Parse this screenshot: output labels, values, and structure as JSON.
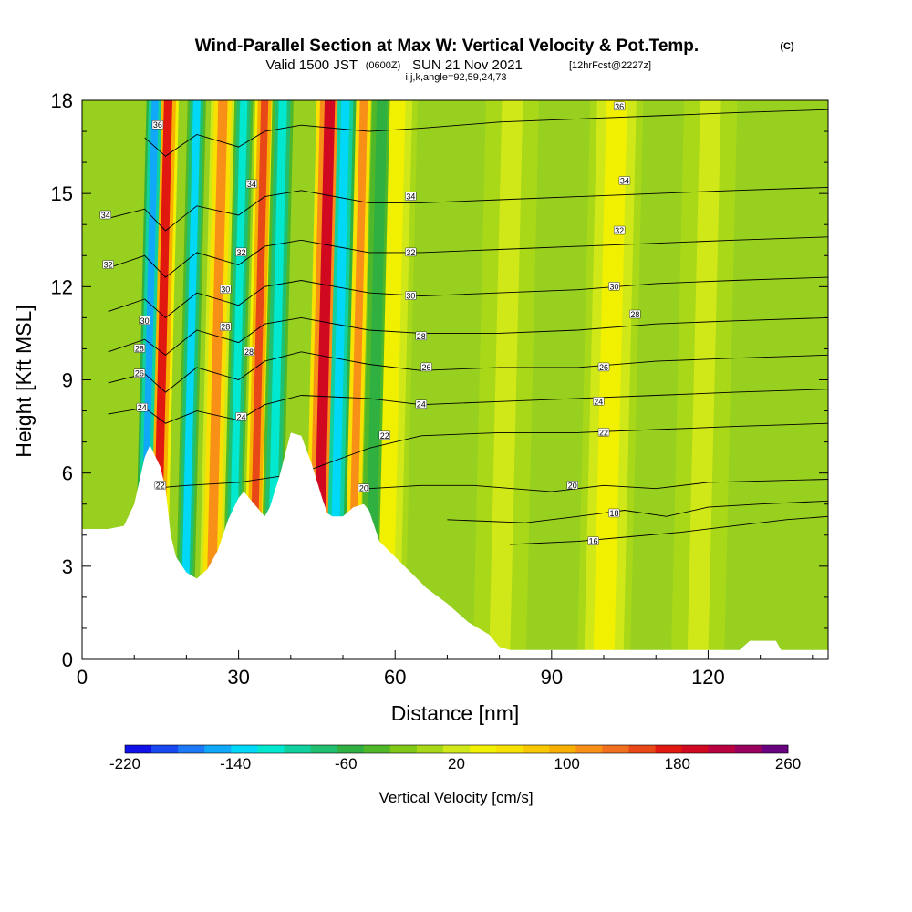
{
  "header": {
    "title": "Wind-Parallel Section at Max W: Vertical Velocity & Pot.Temp.",
    "copyright": "(C)",
    "subtitle_a": "Valid 1500 JST",
    "subtitle_b": "(0600Z)",
    "subtitle_c": "SUN 21 Nov 2021",
    "subtitle_d": "[12hrFcst@2227z]",
    "subtitle_line3": "i,j,k,angle=92,59,24,73"
  },
  "chart_data": {
    "type": "heatmap",
    "xlabel": "Distance [nm]",
    "ylabel": "Height [Kft MSL]",
    "xlim": [
      0,
      143
    ],
    "ylim": [
      0,
      18
    ],
    "x_ticks": [
      0,
      30,
      60,
      90,
      120
    ],
    "y_ticks": [
      0,
      3,
      6,
      9,
      12,
      15,
      18
    ],
    "colorbar": {
      "title": "Vertical Velocity [cm/s]",
      "levels": [
        -220,
        -200,
        -180,
        -160,
        -140,
        -120,
        -100,
        -80,
        -60,
        -40,
        -20,
        0,
        20,
        40,
        60,
        80,
        100,
        120,
        140,
        160,
        180,
        200,
        220,
        240,
        260
      ],
      "labels": [
        -220,
        -140,
        -60,
        20,
        100,
        180,
        260
      ],
      "colors": [
        "#1010e8",
        "#1848f0",
        "#1c78f4",
        "#10a8f8",
        "#00d8f8",
        "#00e8d0",
        "#10d0a0",
        "#20c070",
        "#30b040",
        "#50b828",
        "#80c818",
        "#a8d818",
        "#d0e818",
        "#f0f000",
        "#f8e000",
        "#f8c800",
        "#f8b000",
        "#f89018",
        "#f07020",
        "#e84818",
        "#e01810",
        "#d00820",
        "#b80040",
        "#980060",
        "#680080"
      ]
    },
    "terrain": [
      [
        0,
        4.2
      ],
      [
        5,
        4.2
      ],
      [
        8,
        4.3
      ],
      [
        10,
        5
      ],
      [
        12,
        6.5
      ],
      [
        13,
        6.9
      ],
      [
        15,
        6.2
      ],
      [
        16,
        5.5
      ],
      [
        17,
        4
      ],
      [
        18,
        3.3
      ],
      [
        20,
        2.8
      ],
      [
        22,
        2.6
      ],
      [
        24,
        2.9
      ],
      [
        26,
        3.5
      ],
      [
        28,
        4.5
      ],
      [
        30,
        5.2
      ],
      [
        31,
        5.4
      ],
      [
        33,
        5.0
      ],
      [
        35,
        4.6
      ],
      [
        36,
        4.9
      ],
      [
        38,
        6.0
      ],
      [
        40,
        7.3
      ],
      [
        42,
        7.2
      ],
      [
        44,
        6.3
      ],
      [
        46,
        5.2
      ],
      [
        47,
        4.7
      ],
      [
        48,
        4.6
      ],
      [
        50,
        4.6
      ],
      [
        52,
        4.9
      ],
      [
        54,
        5.0
      ],
      [
        55,
        4.8
      ],
      [
        57,
        3.8
      ],
      [
        60,
        3.3
      ],
      [
        63,
        2.8
      ],
      [
        66,
        2.3
      ],
      [
        70,
        1.8
      ],
      [
        74,
        1.2
      ],
      [
        78,
        0.8
      ],
      [
        80,
        0.4
      ],
      [
        82,
        0.3
      ],
      [
        126,
        0.3
      ],
      [
        128,
        0.6
      ],
      [
        133,
        0.6
      ],
      [
        134,
        0.3
      ],
      [
        143,
        0.3
      ]
    ],
    "updraft_bands": [
      {
        "x": 14.0,
        "w": 1.6,
        "value": 190
      },
      {
        "x": 24.5,
        "w": 1.8,
        "value": 130
      },
      {
        "x": 32.5,
        "w": 1.4,
        "value": 170
      },
      {
        "x": 45.0,
        "w": 2.0,
        "value": 200
      },
      {
        "x": 51.5,
        "w": 1.5,
        "value": 120
      },
      {
        "x": 58.0,
        "w": 3.0,
        "value": 40
      },
      {
        "x": 80.0,
        "w": 4.0,
        "value": 30
      },
      {
        "x": 100.0,
        "w": 4.0,
        "value": 40
      },
      {
        "x": 118.0,
        "w": 4.0,
        "value": 30
      }
    ],
    "downdraft_bands": [
      {
        "x": 11.5,
        "w": 1.3,
        "value": -150
      },
      {
        "x": 19.5,
        "w": 1.4,
        "value": -130
      },
      {
        "x": 28.5,
        "w": 1.4,
        "value": -110
      },
      {
        "x": 36.0,
        "w": 1.6,
        "value": -120
      },
      {
        "x": 48.0,
        "w": 1.6,
        "value": -140
      },
      {
        "x": 55.0,
        "w": 2.0,
        "value": -60
      }
    ],
    "contours": [
      {
        "level": 16,
        "label": "16",
        "points": [
          [
            82,
            3.7
          ],
          [
            95,
            3.8
          ],
          [
            105,
            3.95
          ],
          [
            115,
            4.1
          ],
          [
            125,
            4.3
          ],
          [
            135,
            4.5
          ],
          [
            143,
            4.6
          ]
        ]
      },
      {
        "level": 18,
        "label": "18",
        "points": [
          [
            70,
            4.5
          ],
          [
            85,
            4.4
          ],
          [
            95,
            4.6
          ],
          [
            104,
            4.8
          ],
          [
            112,
            4.6
          ],
          [
            120,
            4.9
          ],
          [
            130,
            5.0
          ],
          [
            143,
            5.1
          ]
        ]
      },
      {
        "level": 20,
        "label": "20",
        "points": [
          [
            55,
            5.5
          ],
          [
            65,
            5.6
          ],
          [
            75,
            5.6
          ],
          [
            90,
            5.4
          ],
          [
            100,
            5.6
          ],
          [
            110,
            5.5
          ],
          [
            120,
            5.7
          ],
          [
            143,
            5.8
          ]
        ]
      },
      {
        "level": 22,
        "label": "22",
        "points": [
          [
            13,
            5.5
          ],
          [
            20,
            5.6
          ],
          [
            30,
            5.7
          ],
          [
            42,
            6.0
          ],
          [
            55,
            6.8
          ],
          [
            65,
            7.2
          ],
          [
            80,
            7.3
          ],
          [
            95,
            7.3
          ],
          [
            110,
            7.4
          ],
          [
            125,
            7.5
          ],
          [
            143,
            7.6
          ]
        ]
      },
      {
        "level": 24,
        "label": "24",
        "points": [
          [
            5,
            7.9
          ],
          [
            12,
            8.1
          ],
          [
            16,
            7.6
          ],
          [
            22,
            8.0
          ],
          [
            30,
            7.7
          ],
          [
            35,
            8.2
          ],
          [
            42,
            8.5
          ],
          [
            55,
            8.4
          ],
          [
            65,
            8.2
          ],
          [
            80,
            8.3
          ],
          [
            95,
            8.4
          ],
          [
            110,
            8.5
          ],
          [
            125,
            8.6
          ],
          [
            143,
            8.7
          ]
        ]
      },
      {
        "level": 26,
        "label": "26",
        "points": [
          [
            5,
            8.9
          ],
          [
            12,
            9.2
          ],
          [
            16,
            8.6
          ],
          [
            22,
            9.4
          ],
          [
            30,
            9.0
          ],
          [
            35,
            9.6
          ],
          [
            42,
            9.9
          ],
          [
            55,
            9.5
          ],
          [
            65,
            9.3
          ],
          [
            80,
            9.4
          ],
          [
            95,
            9.4
          ],
          [
            110,
            9.6
          ],
          [
            125,
            9.7
          ],
          [
            143,
            9.8
          ]
        ]
      },
      {
        "level": 28,
        "label": "28",
        "points": [
          [
            5,
            9.9
          ],
          [
            12,
            10.3
          ],
          [
            16,
            9.8
          ],
          [
            22,
            10.6
          ],
          [
            30,
            10.2
          ],
          [
            35,
            10.8
          ],
          [
            42,
            11.0
          ],
          [
            55,
            10.6
          ],
          [
            65,
            10.5
          ],
          [
            80,
            10.5
          ],
          [
            95,
            10.6
          ],
          [
            110,
            10.8
          ],
          [
            125,
            10.9
          ],
          [
            143,
            11.0
          ]
        ]
      },
      {
        "level": 30,
        "label": "30",
        "points": [
          [
            5,
            11.2
          ],
          [
            12,
            11.6
          ],
          [
            16,
            11.0
          ],
          [
            22,
            11.8
          ],
          [
            30,
            11.4
          ],
          [
            35,
            12.0
          ],
          [
            42,
            12.2
          ],
          [
            55,
            11.8
          ],
          [
            65,
            11.7
          ],
          [
            80,
            11.8
          ],
          [
            95,
            11.9
          ],
          [
            110,
            12.1
          ],
          [
            125,
            12.2
          ],
          [
            143,
            12.3
          ]
        ]
      },
      {
        "level": 32,
        "label": "32",
        "points": [
          [
            5,
            12.6
          ],
          [
            12,
            13.0
          ],
          [
            16,
            12.3
          ],
          [
            22,
            13.1
          ],
          [
            30,
            12.7
          ],
          [
            35,
            13.3
          ],
          [
            42,
            13.5
          ],
          [
            55,
            13.1
          ],
          [
            65,
            13.1
          ],
          [
            80,
            13.2
          ],
          [
            95,
            13.3
          ],
          [
            110,
            13.4
          ],
          [
            125,
            13.5
          ],
          [
            143,
            13.6
          ]
        ]
      },
      {
        "level": 34,
        "label": "34",
        "points": [
          [
            5,
            14.2
          ],
          [
            12,
            14.5
          ],
          [
            16,
            13.8
          ],
          [
            22,
            14.6
          ],
          [
            30,
            14.3
          ],
          [
            35,
            14.9
          ],
          [
            42,
            15.1
          ],
          [
            55,
            14.7
          ],
          [
            65,
            14.7
          ],
          [
            80,
            14.8
          ],
          [
            95,
            14.9
          ],
          [
            110,
            15.0
          ],
          [
            125,
            15.1
          ],
          [
            143,
            15.2
          ]
        ]
      },
      {
        "level": 36,
        "label": "36",
        "points": [
          [
            12,
            16.8
          ],
          [
            16,
            16.2
          ],
          [
            22,
            16.9
          ],
          [
            30,
            16.5
          ],
          [
            35,
            17.0
          ],
          [
            42,
            17.2
          ],
          [
            55,
            17.0
          ],
          [
            65,
            17.1
          ],
          [
            80,
            17.3
          ],
          [
            95,
            17.4
          ],
          [
            110,
            17.5
          ],
          [
            125,
            17.6
          ],
          [
            143,
            17.7
          ]
        ]
      }
    ],
    "contour_labels": [
      {
        "text": "36",
        "x": 14.5,
        "y": 17.2
      },
      {
        "text": "34",
        "x": 32.5,
        "y": 15.3
      },
      {
        "text": "34",
        "x": 63,
        "y": 14.9
      },
      {
        "text": "34",
        "x": 104,
        "y": 15.4
      },
      {
        "text": "34",
        "x": 4.5,
        "y": 14.3
      },
      {
        "text": "36",
        "x": 103,
        "y": 17.8
      },
      {
        "text": "32",
        "x": 5,
        "y": 12.7
      },
      {
        "text": "32",
        "x": 30.5,
        "y": 13.1
      },
      {
        "text": "32",
        "x": 63,
        "y": 13.1
      },
      {
        "text": "32",
        "x": 103,
        "y": 13.8
      },
      {
        "text": "30",
        "x": 27.5,
        "y": 11.9
      },
      {
        "text": "30",
        "x": 63,
        "y": 11.7
      },
      {
        "text": "30",
        "x": 102,
        "y": 12.0
      },
      {
        "text": "30",
        "x": 12,
        "y": 10.9
      },
      {
        "text": "28",
        "x": 11,
        "y": 10.0
      },
      {
        "text": "28",
        "x": 27.5,
        "y": 10.7
      },
      {
        "text": "28",
        "x": 65,
        "y": 10.4
      },
      {
        "text": "28",
        "x": 106,
        "y": 11.1
      },
      {
        "text": "28",
        "x": 32,
        "y": 9.9
      },
      {
        "text": "26",
        "x": 11,
        "y": 9.2
      },
      {
        "text": "26",
        "x": 66,
        "y": 9.4
      },
      {
        "text": "26",
        "x": 100,
        "y": 9.4
      },
      {
        "text": "24",
        "x": 11.5,
        "y": 8.1
      },
      {
        "text": "24",
        "x": 30.5,
        "y": 7.8
      },
      {
        "text": "24",
        "x": 65,
        "y": 8.2
      },
      {
        "text": "24",
        "x": 99,
        "y": 8.3
      },
      {
        "text": "22",
        "x": 58,
        "y": 7.2
      },
      {
        "text": "22",
        "x": 100,
        "y": 7.3
      },
      {
        "text": "22",
        "x": 15,
        "y": 5.6
      },
      {
        "text": "20",
        "x": 54,
        "y": 5.5
      },
      {
        "text": "20",
        "x": 94,
        "y": 5.6
      },
      {
        "text": "18",
        "x": 102,
        "y": 4.7
      },
      {
        "text": "16",
        "x": 98,
        "y": 3.8
      }
    ]
  }
}
